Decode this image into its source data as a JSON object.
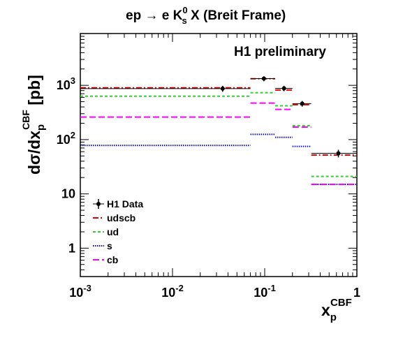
{
  "chart_data": {
    "type": "line",
    "title": {
      "main": "ep → e K",
      "sup": "0",
      "sub": "s",
      "tail": " X (Breit Frame)"
    },
    "annotation": "H1 preliminary",
    "xlabel": {
      "base": "x",
      "sub": "p",
      "sup": "CBF"
    },
    "ylabel": {
      "pre": "dσ/dx",
      "sub": "p",
      "sup": "CBF",
      "post": " [pb]"
    },
    "x_scale": "log",
    "y_scale": "log",
    "xlim": [
      0.001,
      1.0
    ],
    "ylim": [
      0.3,
      9000
    ],
    "x_ticks": [
      {
        "value": 0.001,
        "base": "10",
        "exp": "-3"
      },
      {
        "value": 0.01,
        "base": "10",
        "exp": "-2"
      },
      {
        "value": 0.1,
        "base": "10",
        "exp": "-1"
      },
      {
        "value": 1.0,
        "base": "1",
        "exp": ""
      }
    ],
    "y_ticks": [
      {
        "value": 1,
        "base": "1",
        "exp": ""
      },
      {
        "value": 10,
        "base": "10",
        "exp": ""
      },
      {
        "value": 100,
        "base": "10",
        "exp": "2"
      },
      {
        "value": 1000,
        "base": "10",
        "exp": "3"
      }
    ],
    "grid": false,
    "legend_position": "bottom-left",
    "bin_edges": [
      0.001,
      0.07,
      0.13,
      0.2,
      0.32,
      1.0
    ],
    "data": {
      "name": "H1 Data",
      "points": [
        {
          "x": 0.035,
          "y": 870,
          "yerr": 110
        },
        {
          "x": 0.098,
          "y": 1330,
          "yerr": 140
        },
        {
          "x": 0.162,
          "y": 880,
          "yerr": 100
        },
        {
          "x": 0.255,
          "y": 460,
          "yerr": 55
        },
        {
          "x": 0.63,
          "y": 56,
          "yerr": 9
        }
      ]
    },
    "series": [
      {
        "name": "udscb",
        "color": "#dd0000",
        "style": "dashdot",
        "values": [
          900,
          1320,
          820,
          440,
          52
        ]
      },
      {
        "name": "ud",
        "color": "#33cc33",
        "style": "dashed",
        "values": [
          630,
          730,
          420,
          180,
          21
        ]
      },
      {
        "name": "s",
        "color": "#0000dd",
        "style": "dotted",
        "values": [
          78,
          125,
          110,
          75,
          15
        ]
      },
      {
        "name": "cb",
        "color": "#ff00ff",
        "style": "longdash",
        "values": [
          260,
          470,
          360,
          170,
          15
        ]
      }
    ]
  }
}
